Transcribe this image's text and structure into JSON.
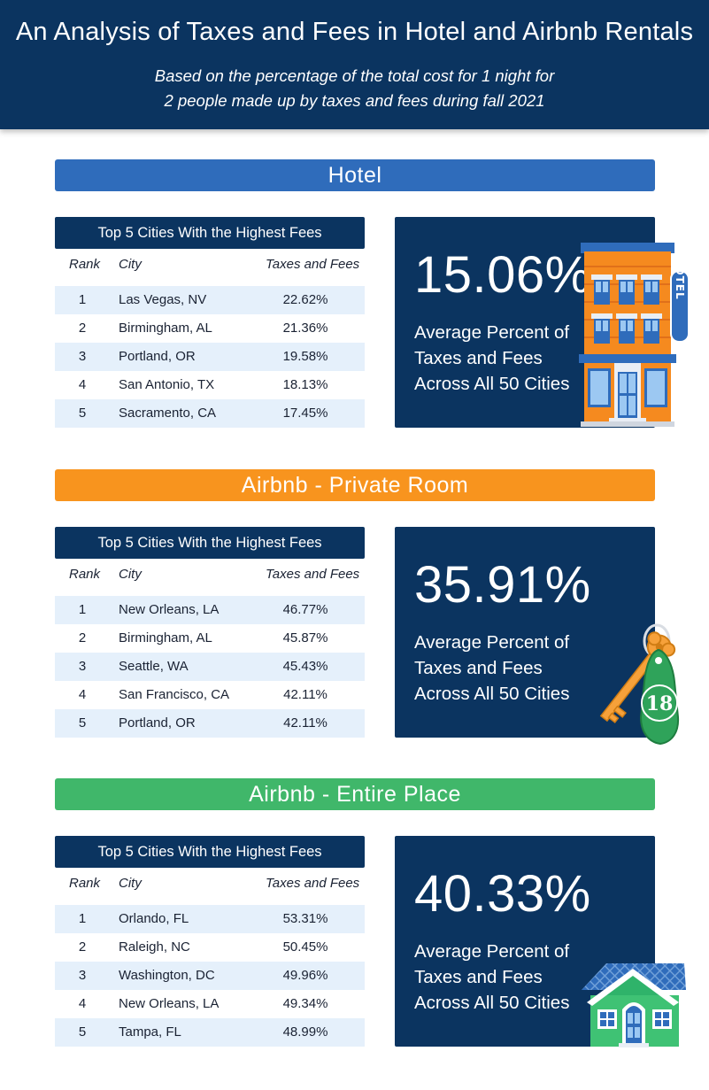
{
  "header": {
    "title": "An Analysis of Taxes and Fees in Hotel and Airbnb Rentals",
    "subtitle_line1": "Based on the percentage of the total cost for 1 night for",
    "subtitle_line2": "2 people made up by taxes and fees during fall 2021"
  },
  "sections": [
    {
      "title": "Hotel",
      "table_title": "Top 5 Cities With the Highest Fees",
      "columns": {
        "rank": "Rank",
        "city": "City",
        "fees": "Taxes and Fees"
      },
      "rows": [
        {
          "rank": "1",
          "city": "Las Vegas, NV",
          "fees": "22.62%"
        },
        {
          "rank": "2",
          "city": "Birmingham, AL",
          "fees": "21.36%"
        },
        {
          "rank": "3",
          "city": "Portland, OR",
          "fees": "19.58%"
        },
        {
          "rank": "4",
          "city": "San Antonio, TX",
          "fees": "18.13%"
        },
        {
          "rank": "5",
          "city": "Sacramento, CA",
          "fees": "17.45%"
        }
      ],
      "average": "15.06%",
      "avg_line1": "Average Percent of",
      "avg_line2": "Taxes and Fees",
      "avg_line3": "Across All 50 Cities",
      "band_color": "#2f6cbb",
      "illustration": "hotel-building-icon",
      "sign_text": "HOTEL"
    },
    {
      "title": "Airbnb - Private Room",
      "table_title": "Top 5 Cities With the Highest Fees",
      "columns": {
        "rank": "Rank",
        "city": "City",
        "fees": "Taxes and Fees"
      },
      "rows": [
        {
          "rank": "1",
          "city": "New Orleans, LA",
          "fees": "46.77%"
        },
        {
          "rank": "2",
          "city": "Birmingham, AL",
          "fees": "45.87%"
        },
        {
          "rank": "3",
          "city": "Seattle, WA",
          "fees": "45.43%"
        },
        {
          "rank": "4",
          "city": "San Francisco, CA",
          "fees": "42.11%"
        },
        {
          "rank": "5",
          "city": "Portland, OR",
          "fees": "42.11%"
        }
      ],
      "average": "35.91%",
      "avg_line1": "Average Percent of",
      "avg_line2": "Taxes and Fees",
      "avg_line3": "Across All 50 Cities",
      "band_color": "#f8941e",
      "illustration": "room-key-icon",
      "key_tag": "18"
    },
    {
      "title": "Airbnb - Entire Place",
      "table_title": "Top 5 Cities With the Highest Fees",
      "columns": {
        "rank": "Rank",
        "city": "City",
        "fees": "Taxes and Fees"
      },
      "rows": [
        {
          "rank": "1",
          "city": "Orlando, FL",
          "fees": "53.31%"
        },
        {
          "rank": "2",
          "city": "Raleigh, NC",
          "fees": "50.45%"
        },
        {
          "rank": "3",
          "city": "Washington, DC",
          "fees": "49.96%"
        },
        {
          "rank": "4",
          "city": "New Orleans, LA",
          "fees": "49.34%"
        },
        {
          "rank": "5",
          "city": "Tampa, FL",
          "fees": "48.99%"
        }
      ],
      "average": "40.33%",
      "avg_line1": "Average Percent of",
      "avg_line2": "Taxes and Fees",
      "avg_line3": "Across All 50 Cities",
      "band_color": "#40b76a",
      "illustration": "house-icon"
    }
  ]
}
